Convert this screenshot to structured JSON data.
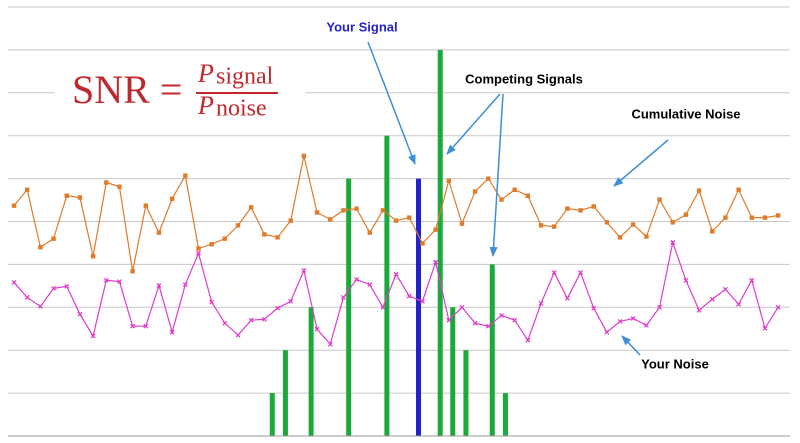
{
  "chart_data": {
    "type": "combo",
    "xlim": [
      -0.46,
      58.9
    ],
    "ylim": [
      0,
      10
    ],
    "yticks": [
      0,
      1,
      2,
      3,
      4,
      5,
      6,
      7,
      8,
      9,
      10
    ],
    "grid": true,
    "formula": {
      "lhs": "SNR =",
      "num_symbol": "P",
      "num_sub": "signal",
      "den_symbol": "P",
      "den_sub": "noise"
    },
    "series": [
      {
        "name": "Competing Signals",
        "kind": "bar",
        "color": "#1aaa3c",
        "x": [
          19.6,
          20.6,
          22.55,
          25.4,
          28.3,
          32.35,
          33.3,
          34.3,
          36.3,
          37.3
        ],
        "values": [
          1,
          2,
          3,
          6,
          7,
          9,
          3,
          2,
          4,
          1
        ]
      },
      {
        "name": "Your Signal",
        "kind": "bar",
        "color": "#2222cc",
        "x": [
          30.7
        ],
        "values": [
          6
        ]
      },
      {
        "name": "Cumulative Noise",
        "kind": "line",
        "color": "#e07b2a",
        "marker": "square",
        "values": [
          5.37,
          5.74,
          4.4,
          4.6,
          5.6,
          5.56,
          4.19,
          5.91,
          5.81,
          3.84,
          5.37,
          4.74,
          5.53,
          6.07,
          4.37,
          4.47,
          4.6,
          4.91,
          5.33,
          4.7,
          4.63,
          5.02,
          6.53,
          5.21,
          5.05,
          5.26,
          5.3,
          4.74,
          5.26,
          5.02,
          5.09,
          4.49,
          4.81,
          5.95,
          4.95,
          5.7,
          6.0,
          5.51,
          5.74,
          5.6,
          4.91,
          4.88,
          5.3,
          5.26,
          5.35,
          4.98,
          4.63,
          4.93,
          4.65,
          5.51,
          4.98,
          5.16,
          5.72,
          4.77,
          5.09,
          5.74,
          5.09,
          5.09,
          5.14
        ]
      },
      {
        "name": "Your Noise",
        "kind": "line",
        "color": "#e03cc8",
        "marker": "cross",
        "values": [
          3.58,
          3.23,
          3.02,
          3.44,
          3.49,
          2.84,
          2.33,
          3.63,
          3.6,
          2.56,
          2.56,
          3.51,
          2.42,
          3.53,
          4.26,
          3.12,
          2.63,
          2.35,
          2.7,
          2.72,
          2.98,
          3.14,
          3.86,
          2.49,
          2.14,
          3.23,
          3.65,
          3.53,
          3.0,
          3.77,
          3.26,
          3.14,
          4.05,
          2.7,
          3.0,
          2.63,
          2.56,
          2.81,
          2.7,
          2.23,
          3.09,
          3.81,
          3.21,
          3.81,
          2.98,
          2.42,
          2.67,
          2.74,
          2.58,
          3.0,
          4.51,
          3.63,
          2.93,
          3.19,
          3.42,
          3.07,
          3.63,
          2.51,
          3.0
        ]
      }
    ]
  }
}
